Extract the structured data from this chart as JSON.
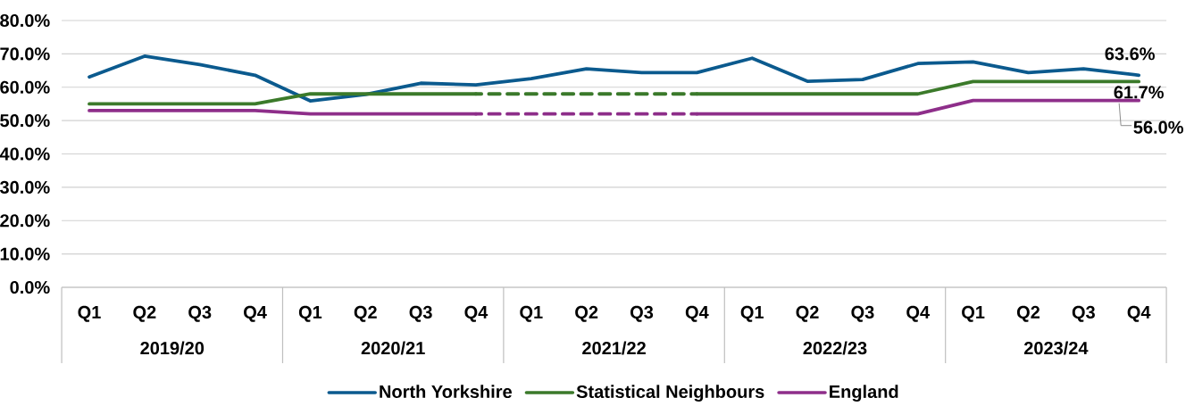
{
  "chart_data": {
    "type": "line",
    "categories": [
      "Q1",
      "Q2",
      "Q3",
      "Q4",
      "Q1",
      "Q2",
      "Q3",
      "Q4",
      "Q1",
      "Q2",
      "Q3",
      "Q4",
      "Q1",
      "Q2",
      "Q3",
      "Q4",
      "Q1",
      "Q2",
      "Q3",
      "Q4"
    ],
    "series": [
      {
        "name": "North Yorkshire",
        "color": "#0b5a8e",
        "values": [
          63.1,
          69.3,
          66.8,
          63.6,
          55.9,
          57.8,
          61.2,
          60.7,
          62.6,
          65.5,
          64.4,
          64.4,
          68.7,
          61.8,
          62.3,
          67.1,
          67.6,
          64.4,
          65.5,
          63.6
        ],
        "value_labels": [
          null,
          null,
          null,
          null,
          null,
          null,
          null,
          null,
          null,
          null,
          null,
          null,
          null,
          null,
          null,
          null,
          null,
          null,
          null,
          "63.6%"
        ]
      },
      {
        "name": "Statistical Neighbours",
        "color": "#3b7a2a",
        "values": [
          55,
          55,
          55,
          55,
          58,
          58,
          58,
          58,
          null,
          null,
          null,
          58,
          58,
          58,
          58,
          58,
          61.7,
          61.7,
          61.7,
          61.7
        ],
        "value_labels": [
          null,
          null,
          null,
          null,
          null,
          null,
          null,
          null,
          null,
          null,
          null,
          null,
          null,
          null,
          null,
          null,
          null,
          null,
          null,
          "61.7%"
        ]
      },
      {
        "color": "#3a792a",
        "line_style": "dashed",
        "values": [
          null,
          null,
          null,
          null,
          null,
          null,
          null,
          58,
          58,
          58,
          58,
          58,
          null,
          null,
          null,
          null,
          null,
          null,
          null,
          null
        ]
      },
      {
        "name": "England",
        "color": "#8e2e8a",
        "values": [
          53,
          53,
          53,
          53,
          52,
          52,
          52,
          52,
          null,
          null,
          null,
          52,
          52,
          52,
          52,
          52,
          56.0,
          56.0,
          56.0,
          56.0
        ],
        "value_labels": [
          null,
          null,
          null,
          null,
          null,
          null,
          null,
          null,
          null,
          null,
          null,
          null,
          null,
          null,
          null,
          null,
          null,
          null,
          null,
          "56.0%"
        ]
      },
      {
        "color": "#8d2d89",
        "line_style": "dashed",
        "values": [
          null,
          null,
          null,
          null,
          null,
          null,
          null,
          52,
          52,
          52,
          52,
          52,
          null,
          null,
          null,
          null,
          null,
          null,
          null,
          null
        ]
      }
    ],
    "ylim": [
      0,
      80
    ],
    "yticks": [
      {
        "value": 0,
        "label": "0.0%"
      },
      {
        "value": 10,
        "label": "10.0%"
      },
      {
        "value": 20,
        "label": "20.0%"
      },
      {
        "value": 30,
        "label": "30.0%"
      },
      {
        "value": 40,
        "label": "40.0%"
      },
      {
        "value": 50,
        "label": "50.0%"
      },
      {
        "value": 60,
        "label": "60.0%"
      },
      {
        "value": 70,
        "label": "70.0%"
      },
      {
        "value": 80,
        "label": "80.0%"
      }
    ],
    "grid": "y",
    "legend": "bottom",
    "annotations": [
      "2019/20",
      "2020/21",
      "2021/22",
      "2022/23",
      "2023/24"
    ]
  }
}
